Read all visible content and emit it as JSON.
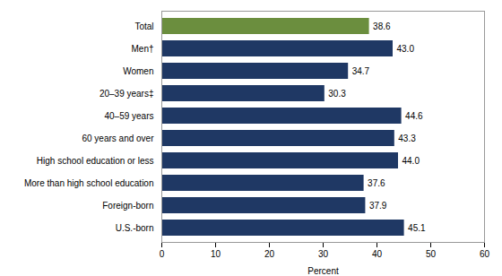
{
  "chart_data": {
    "type": "bar",
    "orientation": "horizontal",
    "categories": [
      "Total",
      "Men†",
      "Women",
      "20–39 years‡",
      "40–59 years",
      "60 years and over",
      "High school education or less",
      "More than high school education",
      "Foreign-born",
      "U.S.-born"
    ],
    "values": [
      38.6,
      43.0,
      34.7,
      30.3,
      44.6,
      43.3,
      44.0,
      37.6,
      37.9,
      45.1
    ],
    "value_labels": [
      "38.6",
      "43.0",
      "34.7",
      "30.3",
      "44.6",
      "43.3",
      "44.0",
      "37.6",
      "37.9",
      "45.1"
    ],
    "colors": [
      "#6b8e3e",
      "#1f3864",
      "#1f3864",
      "#1f3864",
      "#1f3864",
      "#1f3864",
      "#1f3864",
      "#1f3864",
      "#1f3864",
      "#1f3864"
    ],
    "xlabel": "Percent",
    "xlim": [
      0,
      60
    ],
    "xticks": [
      0,
      10,
      20,
      30,
      40,
      50,
      60
    ],
    "data_labels": true,
    "grid": false
  }
}
